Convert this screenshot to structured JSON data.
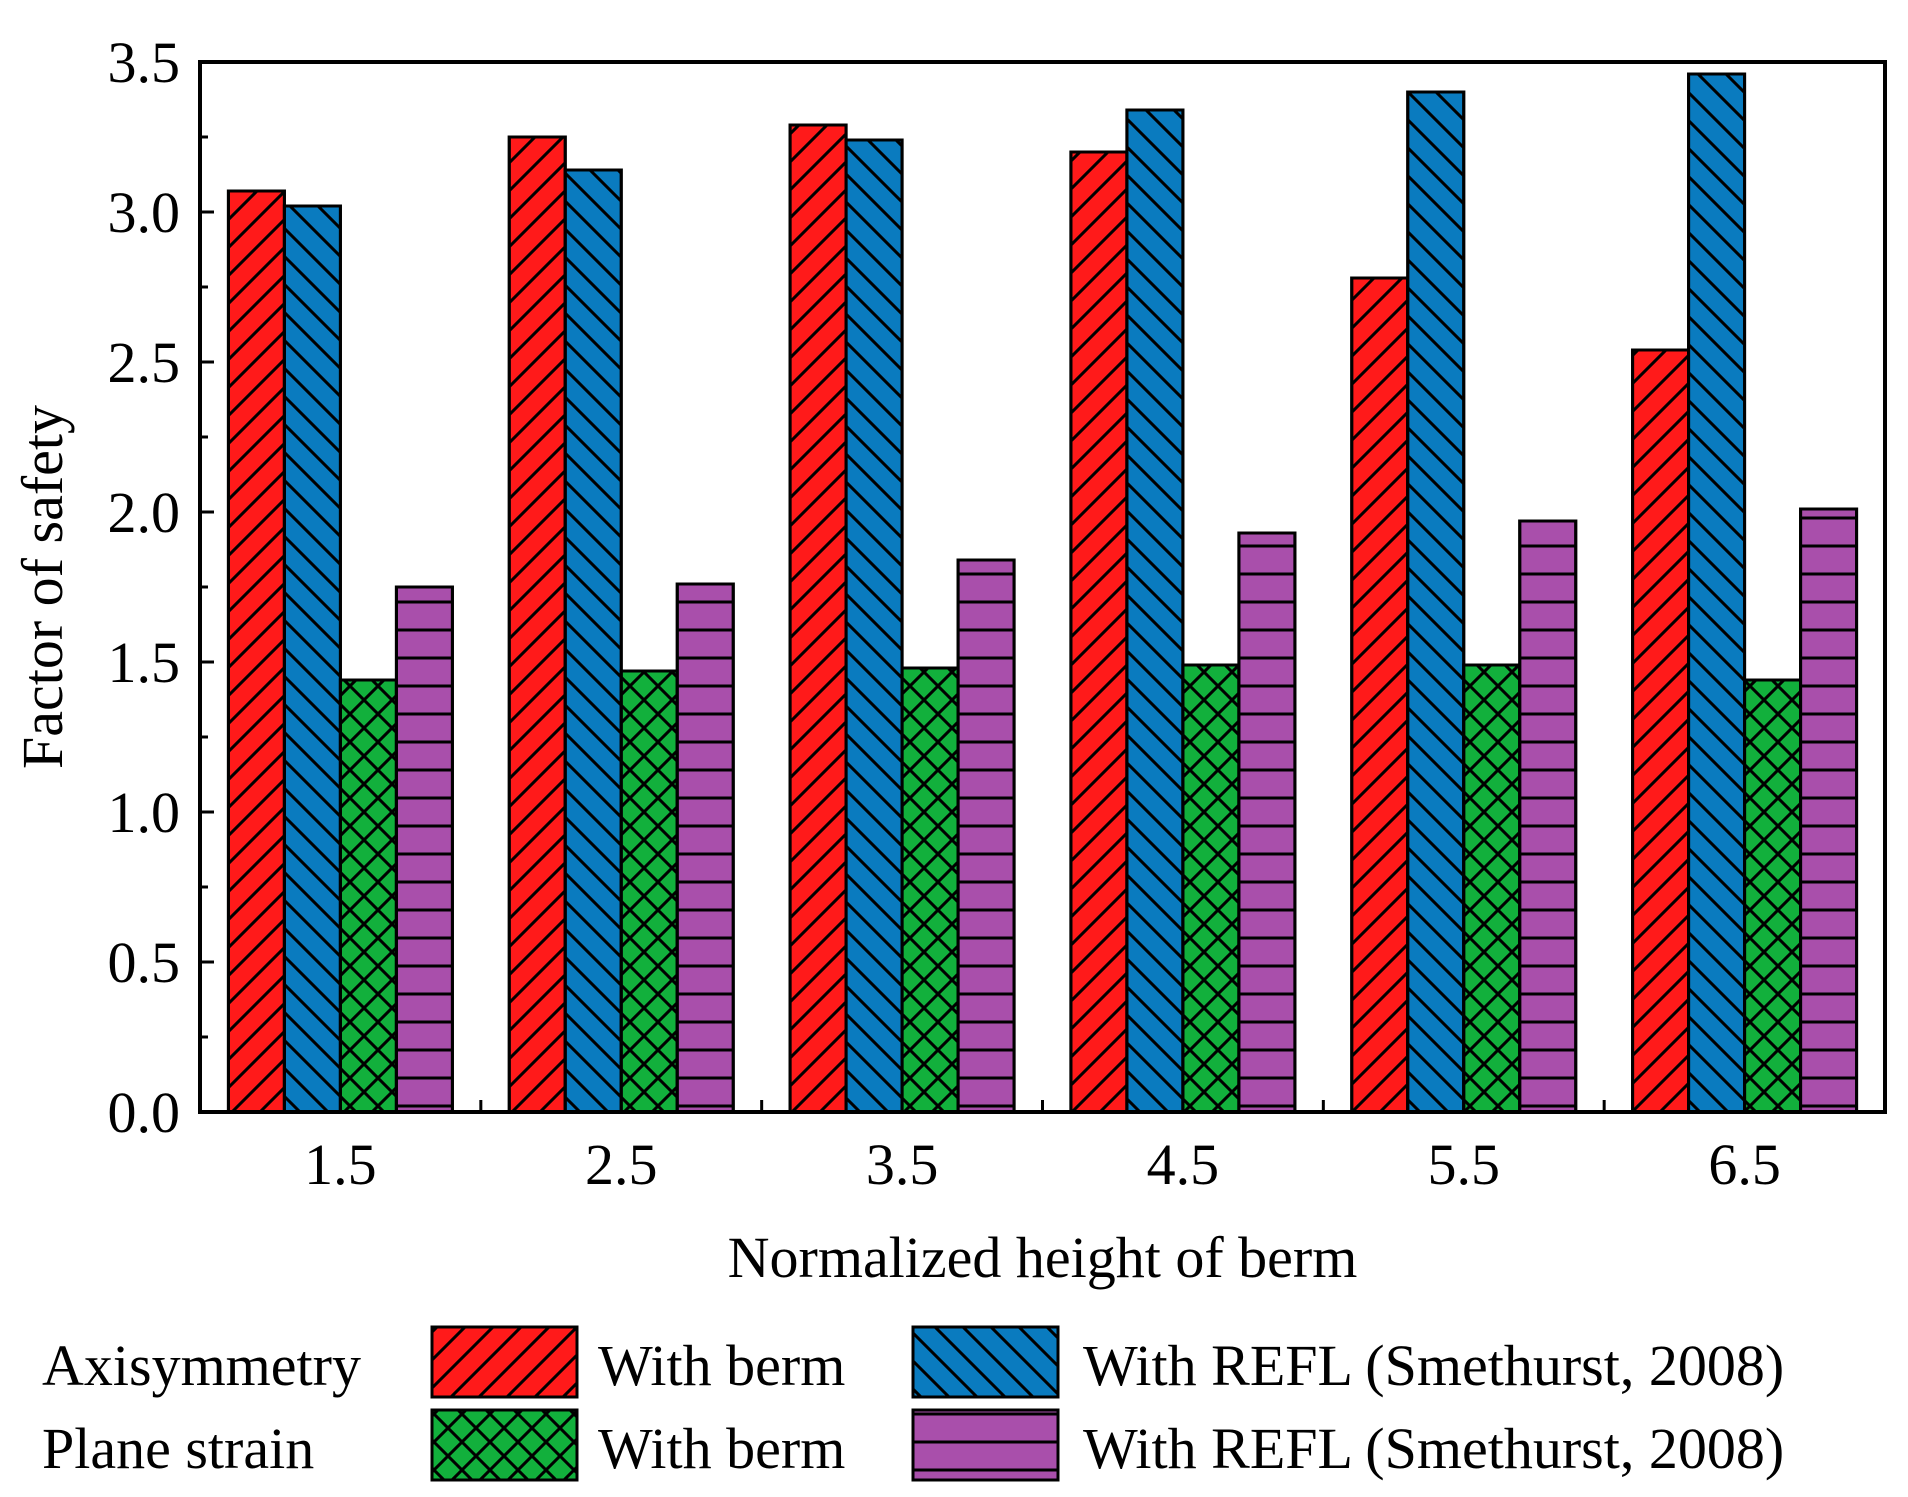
{
  "chart_data": {
    "type": "bar",
    "title": "",
    "xlabel": "Normalized height of berm",
    "ylabel": "Factor of safety",
    "ylim": [
      0,
      3.5
    ],
    "yticks": [
      "0.0",
      "0.5",
      "1.0",
      "1.5",
      "2.0",
      "2.5",
      "3.0",
      "3.5"
    ],
    "categories": [
      "1.5",
      "2.5",
      "3.5",
      "4.5",
      "5.5",
      "6.5"
    ],
    "series": [
      {
        "name": "With berm",
        "group": "Axisymmetry",
        "color": "#ff1a1a",
        "pattern": "diag-forward",
        "values": [
          3.07,
          3.25,
          3.29,
          3.2,
          2.78,
          2.54
        ]
      },
      {
        "name": "With REFL (Smethurst, 2008)",
        "group": "Axisymmetry",
        "color": "#0a7bbf",
        "pattern": "diag-back",
        "values": [
          3.02,
          3.14,
          3.24,
          3.34,
          3.4,
          3.46
        ]
      },
      {
        "name": "With berm",
        "group": "Plane strain",
        "color": "#12b03c",
        "pattern": "crosshatch",
        "values": [
          1.44,
          1.47,
          1.48,
          1.49,
          1.49,
          1.44
        ]
      },
      {
        "name": "With REFL (Smethurst, 2008)",
        "group": "Plane strain",
        "color": "#a94fab",
        "pattern": "horizontal",
        "values": [
          1.75,
          1.76,
          1.84,
          1.93,
          1.97,
          2.01
        ]
      }
    ],
    "legend": {
      "placement": "bottom",
      "row_labels": [
        "Axisymmetry",
        "Plane strain"
      ]
    }
  }
}
